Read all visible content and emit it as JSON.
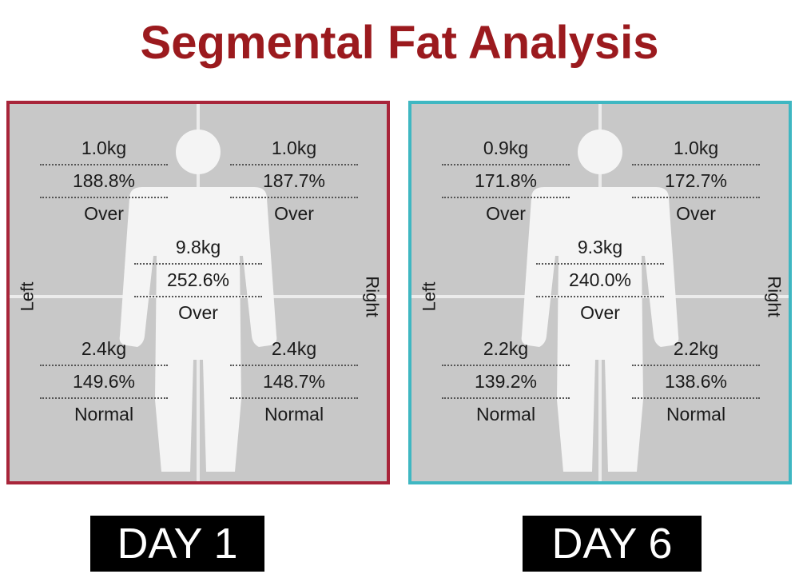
{
  "title": {
    "text": "Segmental Fat Analysis",
    "color": "#9b1a1e"
  },
  "panels": [
    {
      "day_label": "DAY 1",
      "border_color": "#a8253a",
      "side_left": "Left",
      "side_right": "Right",
      "left_arm": {
        "mass": "1.0kg",
        "percent": "188.8%",
        "status": "Over"
      },
      "right_arm": {
        "mass": "1.0kg",
        "percent": "187.7%",
        "status": "Over"
      },
      "trunk": {
        "mass": "9.8kg",
        "percent": "252.6%",
        "status": "Over"
      },
      "left_leg": {
        "mass": "2.4kg",
        "percent": "149.6%",
        "status": "Normal"
      },
      "right_leg": {
        "mass": "2.4kg",
        "percent": "148.7%",
        "status": "Normal"
      }
    },
    {
      "day_label": "DAY 6",
      "border_color": "#3fb7c2",
      "side_left": "Left",
      "side_right": "Right",
      "left_arm": {
        "mass": "0.9kg",
        "percent": "171.8%",
        "status": "Over"
      },
      "right_arm": {
        "mass": "1.0kg",
        "percent": "172.7%",
        "status": "Over"
      },
      "trunk": {
        "mass": "9.3kg",
        "percent": "240.0%",
        "status": "Over"
      },
      "left_leg": {
        "mass": "2.2kg",
        "percent": "139.2%",
        "status": "Normal"
      },
      "right_leg": {
        "mass": "2.2kg",
        "percent": "138.6%",
        "status": "Normal"
      }
    }
  ]
}
